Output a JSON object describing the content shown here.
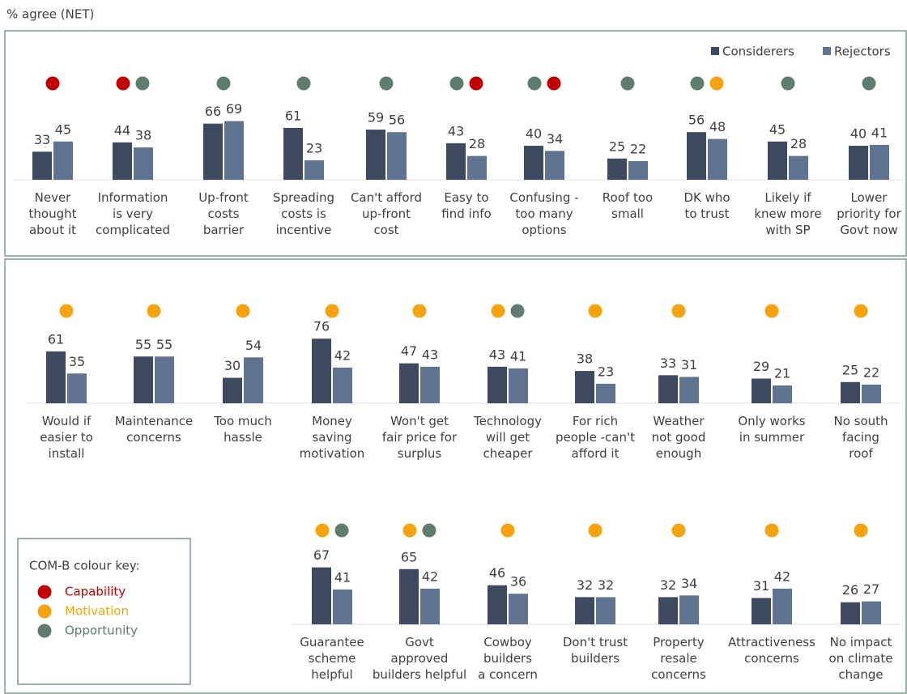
{
  "chart_data": {
    "type": "bar",
    "axis_label": "% agree (NET)",
    "categories": [
      "Never\nthought\nabout it",
      "Information\nis very\ncomplicated",
      "Up-front\ncosts\nbarrier",
      "Spreading\ncosts is\nincentive",
      "Can't afford\nup-front\ncost",
      "Easy to\nfind info",
      "Confusing -\ntoo many\noptions",
      "Roof too\nsmall",
      "DK who\nto trust",
      "Likely if\nknew more\nwith SP",
      "Lower\npriority for\nGovt now",
      "Would if\neasier to\ninstall",
      "Maintenance\nconcerns",
      "Too much\nhassle",
      "Money\nsaving\nmotivation",
      "Won't get\nfair price for\nsurplus",
      "Technology\nwill get\ncheaper",
      "For rich\npeople -can't\nafford it",
      "Weather\nnot good\nenough",
      "Only works\nin summer",
      "No south\nfacing\nroof",
      "Guarantee\nscheme\nhelpful",
      "Govt\napproved\nbuilders helpful",
      "Cowboy\nbuilders\na concern",
      "Don't trust\nbuilders",
      "Property\nresale\nconcerns",
      "Attractiveness\nconcerns",
      "No impact\non climate\nchange"
    ],
    "series": [
      {
        "name": "Considerers",
        "color": "#3d4a5f",
        "values": [
          33,
          44,
          66,
          61,
          59,
          43,
          40,
          25,
          56,
          45,
          40,
          61,
          55,
          30,
          76,
          47,
          43,
          38,
          33,
          29,
          25,
          67,
          65,
          46,
          32,
          32,
          31,
          26
        ]
      },
      {
        "name": "Rejectors",
        "color": "#607391",
        "values": [
          45,
          38,
          69,
          23,
          56,
          28,
          34,
          22,
          48,
          28,
          41,
          35,
          55,
          54,
          42,
          43,
          41,
          23,
          31,
          21,
          22,
          41,
          42,
          36,
          32,
          34,
          42,
          27
        ]
      }
    ],
    "com_b": [
      [
        "Capability"
      ],
      [
        "Capability",
        "Opportunity"
      ],
      [
        "Opportunity"
      ],
      [
        "Opportunity"
      ],
      [
        "Opportunity"
      ],
      [
        "Opportunity",
        "Capability"
      ],
      [
        "Opportunity",
        "Capability"
      ],
      [
        "Opportunity"
      ],
      [
        "Opportunity",
        "Motivation"
      ],
      [
        "Opportunity"
      ],
      [
        "Opportunity"
      ],
      [
        "Motivation"
      ],
      [
        "Motivation"
      ],
      [
        "Motivation"
      ],
      [
        "Motivation"
      ],
      [
        "Motivation"
      ],
      [
        "Motivation",
        "Opportunity"
      ],
      [
        "Motivation"
      ],
      [
        "Motivation"
      ],
      [
        "Motivation"
      ],
      [
        "Motivation"
      ],
      [
        "Motivation",
        "Opportunity"
      ],
      [
        "Motivation",
        "Opportunity"
      ],
      [
        "Motivation"
      ],
      [
        "Motivation"
      ],
      [
        "Motivation"
      ],
      [
        "Motivation"
      ],
      [
        "Motivation"
      ]
    ],
    "com_b_key": {
      "title": "COM-B colour key:",
      "items": [
        {
          "name": "Capability",
          "color": "#c00000"
        },
        {
          "name": "Motivation",
          "color": "#f7a310"
        },
        {
          "name": "Opportunity",
          "color": "#5e7d6c"
        }
      ]
    }
  }
}
